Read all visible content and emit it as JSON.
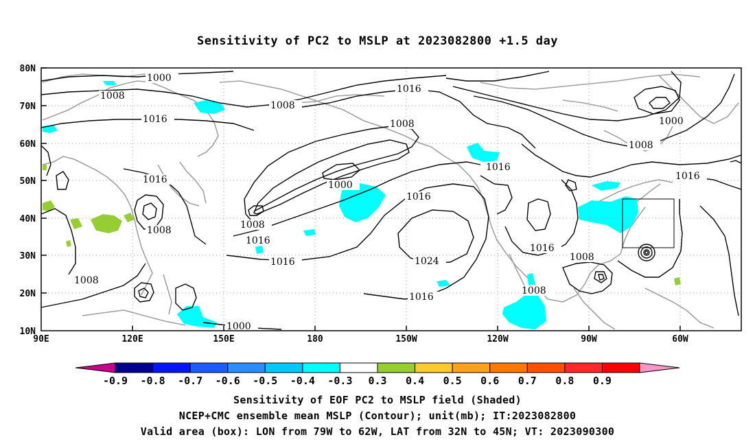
{
  "title": "Sensitivity of PC2 to MSLP at 2023082800 +1.5 day",
  "map": {
    "lat_labels": [
      "80N",
      "70N",
      "60N",
      "50N",
      "40N",
      "30N",
      "20N",
      "10N"
    ],
    "lon_labels": [
      "90E",
      "120E",
      "150E",
      "180",
      "150W",
      "120W",
      "90W",
      "60W"
    ],
    "contour_labels": [
      {
        "text": "1000",
        "pos": "a"
      },
      {
        "text": "1008",
        "pos": "b"
      },
      {
        "text": "1016",
        "pos": "c"
      },
      {
        "text": "1008",
        "pos": "d"
      },
      {
        "text": "1016",
        "pos": "e"
      },
      {
        "text": "1008",
        "pos": "f"
      },
      {
        "text": "1000",
        "pos": "g"
      },
      {
        "text": "1016",
        "pos": "h"
      },
      {
        "text": "1008",
        "pos": "i"
      },
      {
        "text": "1016",
        "pos": "j"
      },
      {
        "text": "1016",
        "pos": "k"
      },
      {
        "text": "1000",
        "pos": "l"
      },
      {
        "text": "1016",
        "pos": "m"
      },
      {
        "text": "1008",
        "pos": "n"
      },
      {
        "text": "1016",
        "pos": "o"
      },
      {
        "text": "1008",
        "pos": "p"
      },
      {
        "text": "1016",
        "pos": "q"
      },
      {
        "text": "1024",
        "pos": "r"
      },
      {
        "text": "1016",
        "pos": "s"
      },
      {
        "text": "1008",
        "pos": "t"
      },
      {
        "text": "1016",
        "pos": "u"
      },
      {
        "text": "1008",
        "pos": "v"
      },
      {
        "text": "1008",
        "pos": "w"
      },
      {
        "text": "1000",
        "pos": "x"
      },
      {
        "text": "1016",
        "pos": "y"
      }
    ],
    "box": {
      "lon_from": "79W",
      "lon_to": "62W",
      "lat_from": "32N",
      "lat_to": "45N"
    }
  },
  "colorbar": {
    "colors": [
      "#c8008c",
      "#00008c",
      "#0014ff",
      "#1e5cff",
      "#2d8cff",
      "#00c8ff",
      "#00ffff",
      "#ffffff",
      "#96cd32",
      "#ffc832",
      "#ffa01e",
      "#ff7800",
      "#ff5000",
      "#ff2828",
      "#ff0000",
      "#ff96c8"
    ],
    "labels": [
      "-0.9",
      "-0.8",
      "-0.7",
      "-0.6",
      "-0.5",
      "-0.4",
      "-0.3",
      "0.3",
      "0.4",
      "0.5",
      "0.6",
      "0.7",
      "0.8",
      "0.9"
    ]
  },
  "captions": {
    "line1": "Sensitivity of EOF PC2 to MSLP field (Shaded)",
    "line2": "NCEP+CMC ensemble mean MSLP (Contour); unit(mb); IT:2023082800",
    "line3": "Valid area (box): LON from 79W to 62W, LAT from 32N to 45N; VT: 2023090300"
  }
}
